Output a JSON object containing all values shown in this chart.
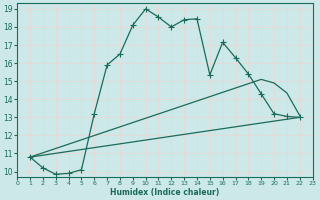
{
  "xlabel": "Humidex (Indice chaleur)",
  "bg_color": "#cce8e8",
  "grid_color": "#d4e8e4",
  "line_color": "#1a6b5a",
  "xlim": [
    0,
    23
  ],
  "ylim": [
    9.7,
    19.3
  ],
  "xticks": [
    0,
    1,
    2,
    3,
    4,
    5,
    6,
    7,
    8,
    9,
    10,
    11,
    12,
    13,
    14,
    15,
    16,
    17,
    18,
    19,
    20,
    21,
    22,
    23
  ],
  "yticks": [
    10,
    11,
    12,
    13,
    14,
    15,
    16,
    17,
    18,
    19
  ],
  "line1_x": [
    1,
    2,
    3,
    4,
    5,
    6,
    7,
    8,
    9,
    10,
    11,
    12,
    13,
    14,
    15,
    16,
    17,
    18,
    19,
    20,
    21,
    22
  ],
  "line1_y": [
    10.8,
    10.2,
    9.85,
    9.9,
    10.1,
    13.2,
    15.9,
    16.5,
    18.1,
    19.0,
    18.55,
    18.0,
    18.4,
    18.45,
    15.35,
    17.15,
    16.3,
    15.4,
    14.3,
    13.2,
    13.05,
    13.0
  ],
  "line2_x": [
    1,
    19,
    20,
    21,
    22
  ],
  "line2_y": [
    10.8,
    15.1,
    14.9,
    14.35,
    13.1
  ],
  "line3_x": [
    1,
    22
  ],
  "line3_y": [
    10.8,
    13.0
  ]
}
